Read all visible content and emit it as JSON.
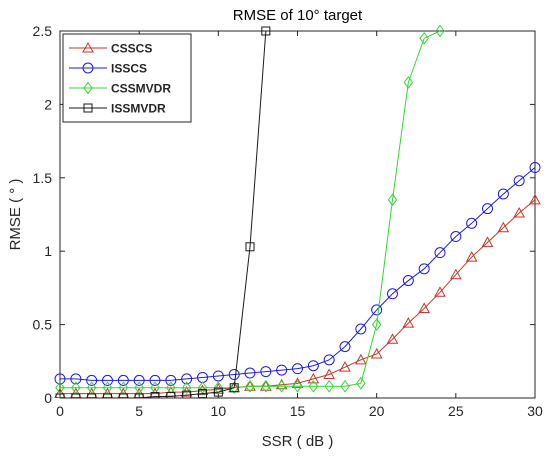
{
  "chart_data": {
    "type": "line",
    "title": "RMSE of 10° target",
    "xlabel": "SSR ( dB )",
    "ylabel": "RMSE ( ° )",
    "xlim": [
      0,
      30
    ],
    "ylim": [
      0,
      2.5
    ],
    "xticks": [
      0,
      5,
      10,
      15,
      20,
      25,
      30
    ],
    "yticks": [
      0,
      0.5,
      1,
      1.5,
      2,
      2.5
    ],
    "xtick_labels": [
      "0",
      "5",
      "10",
      "15",
      "20",
      "25",
      "30"
    ],
    "ytick_labels": [
      "0",
      "0.5",
      "1",
      "1.5",
      "2",
      "2.5"
    ],
    "grid": false,
    "legend_position": "top-left",
    "series": [
      {
        "name": "CSSCS",
        "color": "#c0392b",
        "marker": "triangle",
        "x": [
          0,
          1,
          2,
          3,
          4,
          5,
          6,
          7,
          8,
          9,
          10,
          11,
          12,
          13,
          14,
          15,
          16,
          17,
          18,
          19,
          20,
          21,
          22,
          23,
          24,
          25,
          26,
          27,
          28,
          29,
          30
        ],
        "y": [
          0.03,
          0.03,
          0.03,
          0.03,
          0.03,
          0.03,
          0.03,
          0.04,
          0.04,
          0.05,
          0.06,
          0.07,
          0.08,
          0.08,
          0.09,
          0.1,
          0.13,
          0.16,
          0.21,
          0.26,
          0.3,
          0.4,
          0.51,
          0.61,
          0.72,
          0.84,
          0.96,
          1.06,
          1.16,
          1.26,
          1.35
        ]
      },
      {
        "name": "ISSCS",
        "color": "#1f1fd6",
        "marker": "circle",
        "x": [
          0,
          1,
          2,
          3,
          4,
          5,
          6,
          7,
          8,
          9,
          10,
          11,
          12,
          13,
          14,
          15,
          16,
          17,
          18,
          19,
          20,
          21,
          22,
          23,
          24,
          25,
          26,
          27,
          28,
          29,
          30
        ],
        "y": [
          0.13,
          0.13,
          0.12,
          0.12,
          0.12,
          0.12,
          0.12,
          0.12,
          0.13,
          0.14,
          0.15,
          0.16,
          0.17,
          0.18,
          0.19,
          0.2,
          0.22,
          0.26,
          0.35,
          0.47,
          0.6,
          0.71,
          0.8,
          0.88,
          0.99,
          1.1,
          1.19,
          1.29,
          1.39,
          1.48,
          1.57
        ]
      },
      {
        "name": "CSSMVDR",
        "color": "#33d633",
        "marker": "diamond",
        "x": [
          0,
          1,
          2,
          3,
          4,
          5,
          6,
          7,
          8,
          9,
          10,
          11,
          12,
          13,
          14,
          15,
          16,
          17,
          18,
          19,
          20,
          21,
          22,
          23,
          24
        ],
        "y": [
          0.07,
          0.07,
          0.07,
          0.07,
          0.07,
          0.07,
          0.07,
          0.07,
          0.07,
          0.07,
          0.07,
          0.07,
          0.08,
          0.08,
          0.08,
          0.08,
          0.08,
          0.08,
          0.08,
          0.1,
          0.5,
          1.35,
          2.15,
          2.45,
          2.5
        ]
      },
      {
        "name": "ISSMVDR",
        "color": "#1a1a1a",
        "marker": "square",
        "x": [
          0,
          1,
          2,
          3,
          4,
          5,
          6,
          7,
          8,
          9,
          10,
          11,
          12,
          13
        ],
        "y": [
          0.0,
          0.0,
          0.0,
          0.0,
          0.0,
          0.0,
          0.01,
          0.01,
          0.02,
          0.03,
          0.04,
          0.07,
          1.03,
          2.5
        ]
      }
    ]
  }
}
